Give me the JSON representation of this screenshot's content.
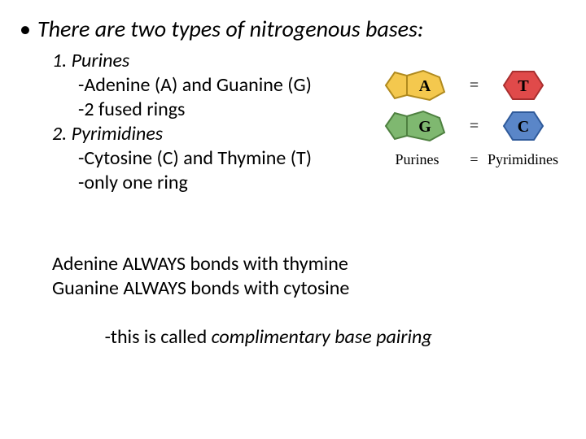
{
  "title": "There are two types of nitrogenous bases:",
  "list": {
    "item1_heading": "1. Purines",
    "item1_sub1": "-Adenine (A) and Guanine (G)",
    "item1_sub2": "-2 fused rings",
    "item2_heading": "2. Pyrimidines",
    "item2_sub1": "-Cytosine (C) and Thymine (T)",
    "item2_sub2": "-only one ring"
  },
  "bonding": {
    "line1": "Adenine ALWAYS bonds with thymine",
    "line2": "Guanine ALWAYS bonds with cytosine",
    "line3_prefix": "-this is called ",
    "line3_italic": "complimentary base pairing"
  },
  "diagram": {
    "rows": [
      {
        "purine_letter": "A",
        "pyrimidine_letter": "T",
        "purine_fill": "#f4c84e",
        "purine_stroke": "#b08a1e",
        "pyrimidine_fill": "#e04a4a",
        "pyrimidine_stroke": "#a82f2f"
      },
      {
        "purine_letter": "G",
        "pyrimidine_letter": "C",
        "purine_fill": "#7fb870",
        "purine_stroke": "#4e8040",
        "pyrimidine_fill": "#5a86c8",
        "pyrimidine_stroke": "#2f5a9a"
      }
    ],
    "eq_symbol": "=",
    "label_left": "Purines",
    "label_right": "Pyrimidines",
    "stroke_width": 2
  },
  "text_color": "#000000",
  "bg_color": "#ffffff"
}
